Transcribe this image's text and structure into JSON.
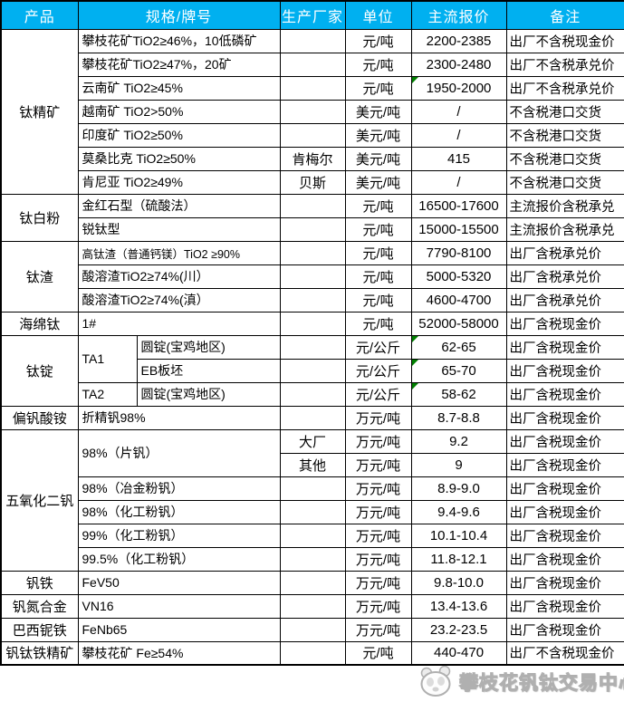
{
  "colors": {
    "header_bg": "#00B0F0",
    "header_text": "#FFFFFF",
    "border": "#000000",
    "comment_triangle": "#008000",
    "watermark_gray": "#B0B0B0"
  },
  "watermark": {
    "text": "攀枝花钒钛交易中心",
    "logo": "panda-logo-icon"
  },
  "table": {
    "headers": [
      {
        "label": "产品",
        "colspan": 1
      },
      {
        "label": "规格/牌号",
        "colspan": 2
      },
      {
        "label": "生产厂家",
        "colspan": 1
      },
      {
        "label": "单位",
        "colspan": 1
      },
      {
        "label": "主流报价",
        "colspan": 1
      },
      {
        "label": "备注",
        "colspan": 1
      }
    ],
    "rows": [
      [
        {
          "text": "钛精矿",
          "type": "product",
          "rowspan": 7
        },
        {
          "text": "攀枝花矿TiO2≥46%，10低磷矿",
          "type": "spec",
          "colspan": 2
        },
        {
          "text": "",
          "type": "maker"
        },
        {
          "text": "元/吨",
          "type": "unit"
        },
        {
          "text": "2200-2385",
          "type": "price"
        },
        {
          "text": "出厂不含税现金价",
          "type": "note"
        }
      ],
      [
        {
          "text": "攀枝花矿TiO2≥47%，20矿",
          "type": "spec",
          "colspan": 2
        },
        {
          "text": "",
          "type": "maker"
        },
        {
          "text": "元/吨",
          "type": "unit"
        },
        {
          "text": "2300-2480",
          "type": "price"
        },
        {
          "text": "出厂不含税承兑价",
          "type": "note"
        }
      ],
      [
        {
          "text": "云南矿 TiO2≥45%",
          "type": "spec",
          "colspan": 2
        },
        {
          "text": "",
          "type": "maker"
        },
        {
          "text": "元/吨",
          "type": "unit"
        },
        {
          "text": "1950-2000",
          "type": "price",
          "marker": true
        },
        {
          "text": "出厂不含税承兑价",
          "type": "note"
        }
      ],
      [
        {
          "text": "越南矿 TiO2>50%",
          "type": "spec",
          "colspan": 2
        },
        {
          "text": "",
          "type": "maker"
        },
        {
          "text": "美元/吨",
          "type": "unit"
        },
        {
          "text": "/",
          "type": "price"
        },
        {
          "text": "不含税港口交货",
          "type": "note"
        }
      ],
      [
        {
          "text": "印度矿 TiO2≥50%",
          "type": "spec",
          "colspan": 2
        },
        {
          "text": "",
          "type": "maker"
        },
        {
          "text": "美元/吨",
          "type": "unit"
        },
        {
          "text": "/",
          "type": "price"
        },
        {
          "text": "不含税港口交货",
          "type": "note"
        }
      ],
      [
        {
          "text": "莫桑比克 TiO2≥50%",
          "type": "spec",
          "colspan": 2
        },
        {
          "text": "肯梅尔",
          "type": "maker"
        },
        {
          "text": "美元/吨",
          "type": "unit"
        },
        {
          "text": "415",
          "type": "price"
        },
        {
          "text": "不含税港口交货",
          "type": "note"
        }
      ],
      [
        {
          "text": "肯尼亚 TiO2≥49%",
          "type": "spec",
          "colspan": 2
        },
        {
          "text": "贝斯",
          "type": "maker"
        },
        {
          "text": "美元/吨",
          "type": "unit"
        },
        {
          "text": "/",
          "type": "price"
        },
        {
          "text": "不含税港口交货",
          "type": "note"
        }
      ],
      [
        {
          "text": "钛白粉",
          "type": "product",
          "rowspan": 2
        },
        {
          "text": "金红石型（硫酸法）",
          "type": "spec",
          "colspan": 2
        },
        {
          "text": "",
          "type": "maker"
        },
        {
          "text": "元/吨",
          "type": "unit"
        },
        {
          "text": "16500-17600",
          "type": "price"
        },
        {
          "text": "主流报价含税承兑",
          "type": "note"
        }
      ],
      [
        {
          "text": "锐钛型",
          "type": "spec",
          "colspan": 2
        },
        {
          "text": "",
          "type": "maker"
        },
        {
          "text": "元/吨",
          "type": "unit"
        },
        {
          "text": "15000-15500",
          "type": "price"
        },
        {
          "text": "主流报价含税承兑",
          "type": "note"
        }
      ],
      [
        {
          "text": "钛渣",
          "type": "product",
          "rowspan": 3
        },
        {
          "text": "高钛渣（普通钙镁）TiO2 ≥90%",
          "type": "spec",
          "colspan": 2,
          "small": true
        },
        {
          "text": "",
          "type": "maker"
        },
        {
          "text": "元/吨",
          "type": "unit"
        },
        {
          "text": "7790-8100",
          "type": "price"
        },
        {
          "text": "出厂含税承兑价",
          "type": "note"
        }
      ],
      [
        {
          "text": "酸溶渣TiO2≥74%(川）",
          "type": "spec",
          "colspan": 2
        },
        {
          "text": "",
          "type": "maker"
        },
        {
          "text": "元/吨",
          "type": "unit"
        },
        {
          "text": "5000-5320",
          "type": "price"
        },
        {
          "text": "出厂含税承兑价",
          "type": "note"
        }
      ],
      [
        {
          "text": "酸溶渣TiO2≥74%(滇）",
          "type": "spec",
          "colspan": 2
        },
        {
          "text": "",
          "type": "maker"
        },
        {
          "text": "元/吨",
          "type": "unit"
        },
        {
          "text": "4600-4700",
          "type": "price"
        },
        {
          "text": "出厂含税承兑价",
          "type": "note"
        }
      ],
      [
        {
          "text": "海绵钛",
          "type": "product"
        },
        {
          "text": "1#",
          "type": "spec",
          "colspan": 2
        },
        {
          "text": "",
          "type": "maker"
        },
        {
          "text": "元/吨",
          "type": "unit"
        },
        {
          "text": "52000-58000",
          "type": "price"
        },
        {
          "text": "出厂含税现金价",
          "type": "note"
        }
      ],
      [
        {
          "text": "钛锭",
          "type": "product",
          "rowspan": 3
        },
        {
          "text": "TA1",
          "type": "spec",
          "rowspan": 2
        },
        {
          "text": "圆锭(宝鸡地区)",
          "type": "spec"
        },
        {
          "text": "",
          "type": "maker"
        },
        {
          "text": "元/公斤",
          "type": "unit"
        },
        {
          "text": "62-65",
          "type": "price",
          "marker": true
        },
        {
          "text": "出厂含税现金价",
          "type": "note"
        }
      ],
      [
        {
          "text": "EB板坯",
          "type": "spec"
        },
        {
          "text": "",
          "type": "maker"
        },
        {
          "text": "元/公斤",
          "type": "unit"
        },
        {
          "text": "65-70",
          "type": "price",
          "marker": true
        },
        {
          "text": "出厂含税现金价",
          "type": "note"
        }
      ],
      [
        {
          "text": "TA2",
          "type": "spec"
        },
        {
          "text": "圆锭(宝鸡地区)",
          "type": "spec"
        },
        {
          "text": "",
          "type": "maker"
        },
        {
          "text": "元/公斤",
          "type": "unit"
        },
        {
          "text": "58-62",
          "type": "price",
          "marker": true
        },
        {
          "text": "出厂含税现金价",
          "type": "note"
        }
      ],
      [
        {
          "text": "偏钒酸铵",
          "type": "product"
        },
        {
          "text": "折精钒98%",
          "type": "spec",
          "colspan": 2
        },
        {
          "text": "",
          "type": "maker"
        },
        {
          "text": "万元/吨",
          "type": "unit"
        },
        {
          "text": "8.7-8.8",
          "type": "price"
        },
        {
          "text": "出厂含税现金价",
          "type": "note"
        }
      ],
      [
        {
          "text": "五氧化二钒",
          "type": "product",
          "rowspan": 6
        },
        {
          "text": "98%（片钒）",
          "type": "spec",
          "colspan": 2,
          "rowspan": 2
        },
        {
          "text": "大厂",
          "type": "maker"
        },
        {
          "text": "万元/吨",
          "type": "unit"
        },
        {
          "text": "9.2",
          "type": "price"
        },
        {
          "text": "出厂含税现金价",
          "type": "note"
        }
      ],
      [
        {
          "text": "其他",
          "type": "maker"
        },
        {
          "text": "万元/吨",
          "type": "unit"
        },
        {
          "text": "9",
          "type": "price"
        },
        {
          "text": "出厂含税现金价",
          "type": "note"
        }
      ],
      [
        {
          "text": "98%（冶金粉钒）",
          "type": "spec",
          "colspan": 2
        },
        {
          "text": "",
          "type": "maker"
        },
        {
          "text": "万元/吨",
          "type": "unit"
        },
        {
          "text": "8.9-9.0",
          "type": "price"
        },
        {
          "text": "出厂含税现金价",
          "type": "note"
        }
      ],
      [
        {
          "text": "98%（化工粉钒）",
          "type": "spec",
          "colspan": 2
        },
        {
          "text": "",
          "type": "maker"
        },
        {
          "text": "万元/吨",
          "type": "unit"
        },
        {
          "text": "9.4-9.6",
          "type": "price"
        },
        {
          "text": "出厂含税现金价",
          "type": "note"
        }
      ],
      [
        {
          "text": "99%（化工粉钒）",
          "type": "spec",
          "colspan": 2
        },
        {
          "text": "",
          "type": "maker"
        },
        {
          "text": "万元/吨",
          "type": "unit"
        },
        {
          "text": "10.1-10.4",
          "type": "price"
        },
        {
          "text": "出厂含税现金价",
          "type": "note"
        }
      ],
      [
        {
          "text": "99.5%（化工粉钒）",
          "type": "spec",
          "colspan": 2
        },
        {
          "text": "",
          "type": "maker"
        },
        {
          "text": "万元/吨",
          "type": "unit"
        },
        {
          "text": "11.8-12.1",
          "type": "price"
        },
        {
          "text": "出厂含税现金价",
          "type": "note"
        }
      ],
      [
        {
          "text": "钒铁",
          "type": "product"
        },
        {
          "text": "FeV50",
          "type": "spec",
          "colspan": 2
        },
        {
          "text": "",
          "type": "maker"
        },
        {
          "text": "万元/吨",
          "type": "unit"
        },
        {
          "text": "9.8-10.0",
          "type": "price"
        },
        {
          "text": "出厂含税现金价",
          "type": "note"
        }
      ],
      [
        {
          "text": "钒氮合金",
          "type": "product"
        },
        {
          "text": "VN16",
          "type": "spec",
          "colspan": 2
        },
        {
          "text": "",
          "type": "maker"
        },
        {
          "text": "万元/吨",
          "type": "unit"
        },
        {
          "text": "13.4-13.6",
          "type": "price"
        },
        {
          "text": "出厂含税现金价",
          "type": "note"
        }
      ],
      [
        {
          "text": "巴西铌铁",
          "type": "product"
        },
        {
          "text": "FeNb65",
          "type": "spec",
          "colspan": 2
        },
        {
          "text": "",
          "type": "maker"
        },
        {
          "text": "万元/吨",
          "type": "unit"
        },
        {
          "text": "23.2-23.5",
          "type": "price"
        },
        {
          "text": "出厂含税现金价",
          "type": "note"
        }
      ],
      [
        {
          "text": "钒钛铁精矿",
          "type": "product"
        },
        {
          "text": "攀枝花矿 Fe≥54%",
          "type": "spec",
          "colspan": 2
        },
        {
          "text": "",
          "type": "maker"
        },
        {
          "text": "元/吨",
          "type": "unit"
        },
        {
          "text": "440-470",
          "type": "price"
        },
        {
          "text": "出厂不含税现金价",
          "type": "note"
        }
      ]
    ]
  }
}
